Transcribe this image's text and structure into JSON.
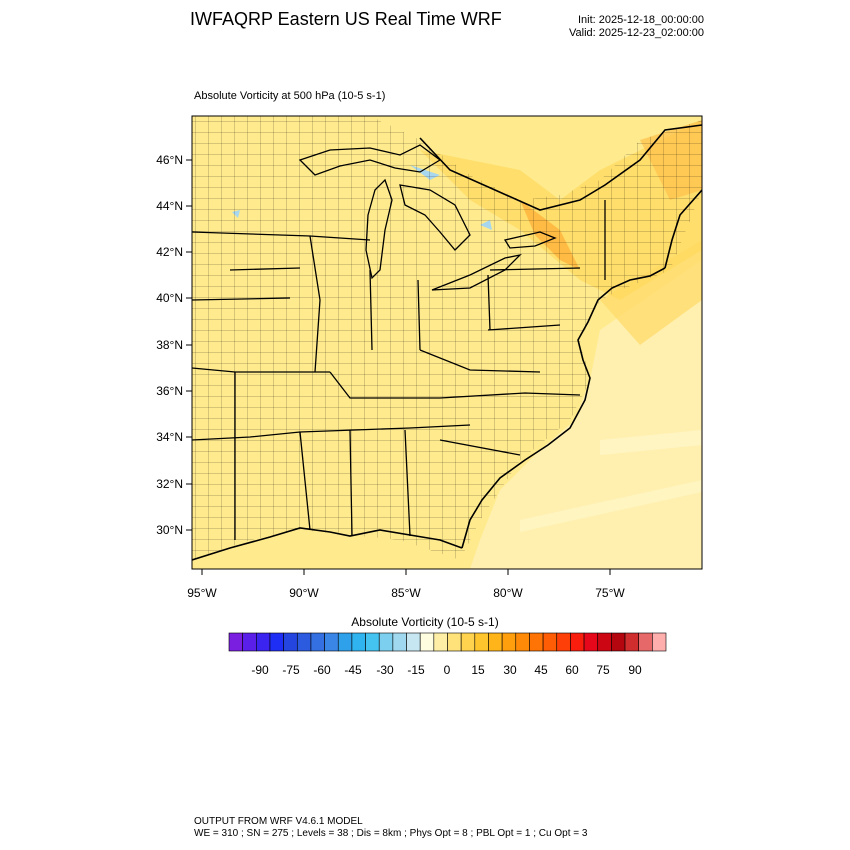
{
  "header": {
    "title": "IWFAQRP Eastern US Real Time WRF",
    "init": "Init: 2025-12-18_00:00:00",
    "valid": "Valid: 2025-12-23_02:00:00"
  },
  "plot": {
    "subtitle": "Absolute Vorticity at 500 hPa   (10-5 s-1)",
    "lat_labels": [
      "46°N",
      "44°N",
      "42°N",
      "40°N",
      "38°N",
      "36°N",
      "34°N",
      "32°N",
      "30°N"
    ],
    "lon_labels": [
      "95°W",
      "90°W",
      "85°W",
      "80°W",
      "75°W"
    ]
  },
  "colorbar": {
    "title": "Absolute Vorticity  (10-5 s-1)",
    "tick_labels": [
      "-90",
      "-75",
      "-60",
      "-45",
      "-30",
      "-15",
      "0",
      "15",
      "30",
      "45",
      "60",
      "75",
      "90"
    ],
    "colors": [
      "#7a1ee0",
      "#5a1fe8",
      "#3c24f0",
      "#1f2ef5",
      "#2445e0",
      "#2c5be0",
      "#3470e2",
      "#3a86e6",
      "#2fa0ea",
      "#2fb4ef",
      "#44c2f0",
      "#7ccfee",
      "#a0d9ef",
      "#c6e6f2",
      "#fffde0",
      "#ffefa6",
      "#ffe27a",
      "#ffd34e",
      "#ffc52c",
      "#ffb41a",
      "#ff9f0e",
      "#ff8a08",
      "#ff7404",
      "#ff5c06",
      "#ff3f08",
      "#f91d0e",
      "#e6081a",
      "#cc0612",
      "#b4060e",
      "#d02e2e",
      "#e66868",
      "#ffaeae"
    ]
  },
  "footer": {
    "line1": "OUTPUT FROM WRF V4.6.1 MODEL",
    "line2": "WE = 310 ; SN = 275 ; Levels = 38 ; Dis = 8km ; Phys Opt = 8 ; PBL Opt = 1 ; Cu Opt = 3"
  }
}
